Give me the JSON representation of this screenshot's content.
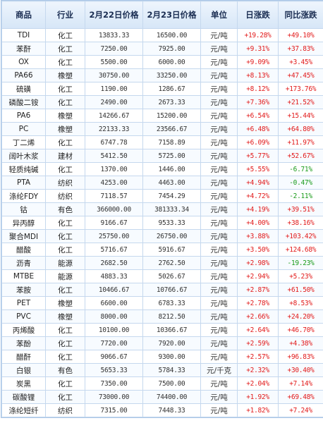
{
  "columns": [
    "商品",
    "行业",
    "2月22日价格",
    "2月23日价格",
    "单位",
    "日涨跌",
    "同比涨跌"
  ],
  "rows": [
    {
      "name": "TDI",
      "industry": "化工",
      "p1": "13833.33",
      "p2": "16500.00",
      "unit": "元/吨",
      "day": "+19.28%",
      "yoy": "+49.10%"
    },
    {
      "name": "苯酐",
      "industry": "化工",
      "p1": "7250.00",
      "p2": "7925.00",
      "unit": "元/吨",
      "day": "+9.31%",
      "yoy": "+37.83%"
    },
    {
      "name": "OX",
      "industry": "化工",
      "p1": "5500.00",
      "p2": "6000.00",
      "unit": "元/吨",
      "day": "+9.09%",
      "yoy": "+3.45%"
    },
    {
      "name": "PA66",
      "industry": "橡塑",
      "p1": "30750.00",
      "p2": "33250.00",
      "unit": "元/吨",
      "day": "+8.13%",
      "yoy": "+47.45%"
    },
    {
      "name": "硫磺",
      "industry": "化工",
      "p1": "1190.00",
      "p2": "1286.67",
      "unit": "元/吨",
      "day": "+8.12%",
      "yoy": "+173.76%"
    },
    {
      "name": "磷酸二铵",
      "industry": "化工",
      "p1": "2490.00",
      "p2": "2673.33",
      "unit": "元/吨",
      "day": "+7.36%",
      "yoy": "+21.52%"
    },
    {
      "name": "PA6",
      "industry": "橡塑",
      "p1": "14266.67",
      "p2": "15200.00",
      "unit": "元/吨",
      "day": "+6.54%",
      "yoy": "+15.44%"
    },
    {
      "name": "PC",
      "industry": "橡塑",
      "p1": "22133.33",
      "p2": "23566.67",
      "unit": "元/吨",
      "day": "+6.48%",
      "yoy": "+64.80%"
    },
    {
      "name": "丁二烯",
      "industry": "化工",
      "p1": "6747.78",
      "p2": "7158.89",
      "unit": "元/吨",
      "day": "+6.09%",
      "yoy": "+11.97%"
    },
    {
      "name": "阔叶木浆",
      "industry": "建材",
      "p1": "5412.50",
      "p2": "5725.00",
      "unit": "元/吨",
      "day": "+5.77%",
      "yoy": "+52.67%"
    },
    {
      "name": "轻质纯碱",
      "industry": "化工",
      "p1": "1370.00",
      "p2": "1446.00",
      "unit": "元/吨",
      "day": "+5.55%",
      "yoy": "-6.71%"
    },
    {
      "name": "PTA",
      "industry": "纺织",
      "p1": "4253.00",
      "p2": "4463.00",
      "unit": "元/吨",
      "day": "+4.94%",
      "yoy": "-0.47%"
    },
    {
      "name": "涤纶FDY",
      "industry": "纺织",
      "p1": "7118.57",
      "p2": "7454.29",
      "unit": "元/吨",
      "day": "+4.72%",
      "yoy": "-2.11%"
    },
    {
      "name": "钴",
      "industry": "有色",
      "p1": "366000.00",
      "p2": "381333.34",
      "unit": "元/吨",
      "day": "+4.19%",
      "yoy": "+39.51%"
    },
    {
      "name": "异丙醇",
      "industry": "化工",
      "p1": "9166.67",
      "p2": "9533.33",
      "unit": "元/吨",
      "day": "+4.00%",
      "yoy": "+38.16%"
    },
    {
      "name": "聚合MDI",
      "industry": "化工",
      "p1": "25750.00",
      "p2": "26750.00",
      "unit": "元/吨",
      "day": "+3.88%",
      "yoy": "+103.42%"
    },
    {
      "name": "醋酸",
      "industry": "化工",
      "p1": "5716.67",
      "p2": "5916.67",
      "unit": "元/吨",
      "day": "+3.50%",
      "yoy": "+124.68%"
    },
    {
      "name": "沥青",
      "industry": "能源",
      "p1": "2682.50",
      "p2": "2762.50",
      "unit": "元/吨",
      "day": "+2.98%",
      "yoy": "-19.23%"
    },
    {
      "name": "MTBE",
      "industry": "能源",
      "p1": "4883.33",
      "p2": "5026.67",
      "unit": "元/吨",
      "day": "+2.94%",
      "yoy": "+5.23%"
    },
    {
      "name": "苯胺",
      "industry": "化工",
      "p1": "10466.67",
      "p2": "10766.67",
      "unit": "元/吨",
      "day": "+2.87%",
      "yoy": "+61.50%"
    },
    {
      "name": "PET",
      "industry": "橡塑",
      "p1": "6600.00",
      "p2": "6783.33",
      "unit": "元/吨",
      "day": "+2.78%",
      "yoy": "+8.53%"
    },
    {
      "name": "PVC",
      "industry": "橡塑",
      "p1": "8000.00",
      "p2": "8212.50",
      "unit": "元/吨",
      "day": "+2.66%",
      "yoy": "+24.20%"
    },
    {
      "name": "丙烯酸",
      "industry": "化工",
      "p1": "10100.00",
      "p2": "10366.67",
      "unit": "元/吨",
      "day": "+2.64%",
      "yoy": "+46.70%"
    },
    {
      "name": "苯酚",
      "industry": "化工",
      "p1": "7720.00",
      "p2": "7920.00",
      "unit": "元/吨",
      "day": "+2.59%",
      "yoy": "+4.38%"
    },
    {
      "name": "醋酐",
      "industry": "化工",
      "p1": "9066.67",
      "p2": "9300.00",
      "unit": "元/吨",
      "day": "+2.57%",
      "yoy": "+96.83%"
    },
    {
      "name": "白银",
      "industry": "有色",
      "p1": "5653.33",
      "p2": "5784.33",
      "unit": "元/千克",
      "day": "+2.32%",
      "yoy": "+30.40%"
    },
    {
      "name": "炭黑",
      "industry": "化工",
      "p1": "7350.00",
      "p2": "7500.00",
      "unit": "元/吨",
      "day": "+2.04%",
      "yoy": "+7.14%"
    },
    {
      "name": "碳酸锂",
      "industry": "化工",
      "p1": "73000.00",
      "p2": "74400.00",
      "unit": "元/吨",
      "day": "+1.92%",
      "yoy": "+69.48%"
    },
    {
      "name": "涤纶短纤",
      "industry": "纺织",
      "p1": "7315.00",
      "p2": "7448.33",
      "unit": "元/吨",
      "day": "+1.82%",
      "yoy": "+7.24%"
    }
  ]
}
